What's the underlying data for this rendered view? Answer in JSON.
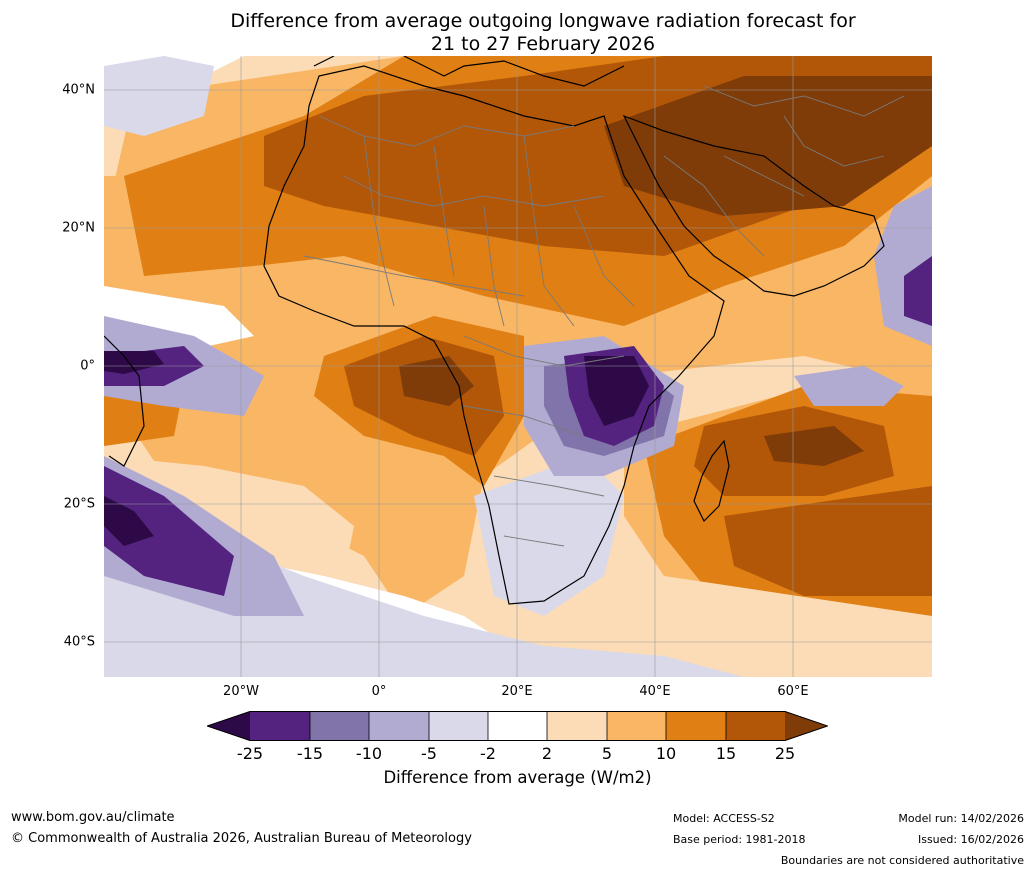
{
  "title": {
    "line1": "Difference from average outgoing longwave radiation forecast for",
    "line2": "21 to 27 February 2026"
  },
  "map": {
    "region": "Africa and surrounding oceans",
    "lat_labels": [
      "40°N",
      "20°N",
      "0°",
      "20°S",
      "40°S"
    ],
    "lon_labels": [
      "20°W",
      "0°",
      "20°E",
      "40°E",
      "60°E"
    ],
    "features": [
      "anomaly-field",
      "coastlines",
      "country-borders",
      "graticule"
    ]
  },
  "colorbar": {
    "title": "Difference from average (W/m2)",
    "ticks": [
      "-25",
      "-15",
      "-10",
      "-5",
      "-2",
      "2",
      "5",
      "10",
      "15",
      "25"
    ],
    "colors": {
      "lt_-25": "#2d0a47",
      "-25_-15": "#54237f",
      "-15_-10": "#8074aa",
      "-10_-5": "#b1abd2",
      "-5_-2": "#d9d9ea",
      "-2_2": "#ffffff",
      "2_5": "#fcdcb6",
      "5_10": "#f9b665",
      "10_15": "#df7f14",
      "15_25": "#b25608",
      "gt_25": "#7f3c08"
    }
  },
  "footer": {
    "url": "www.bom.gov.au/climate",
    "copyright": "© Commonwealth of Australia 2026, Australian Bureau of Meteorology",
    "model": "Model: ACCESS-S2",
    "base_period": "Base period: 1981-2018",
    "model_run": "Model run: 14/02/2026",
    "issued": "Issued: 16/02/2026",
    "disclaimer": "Boundaries are not considered authoritative"
  }
}
